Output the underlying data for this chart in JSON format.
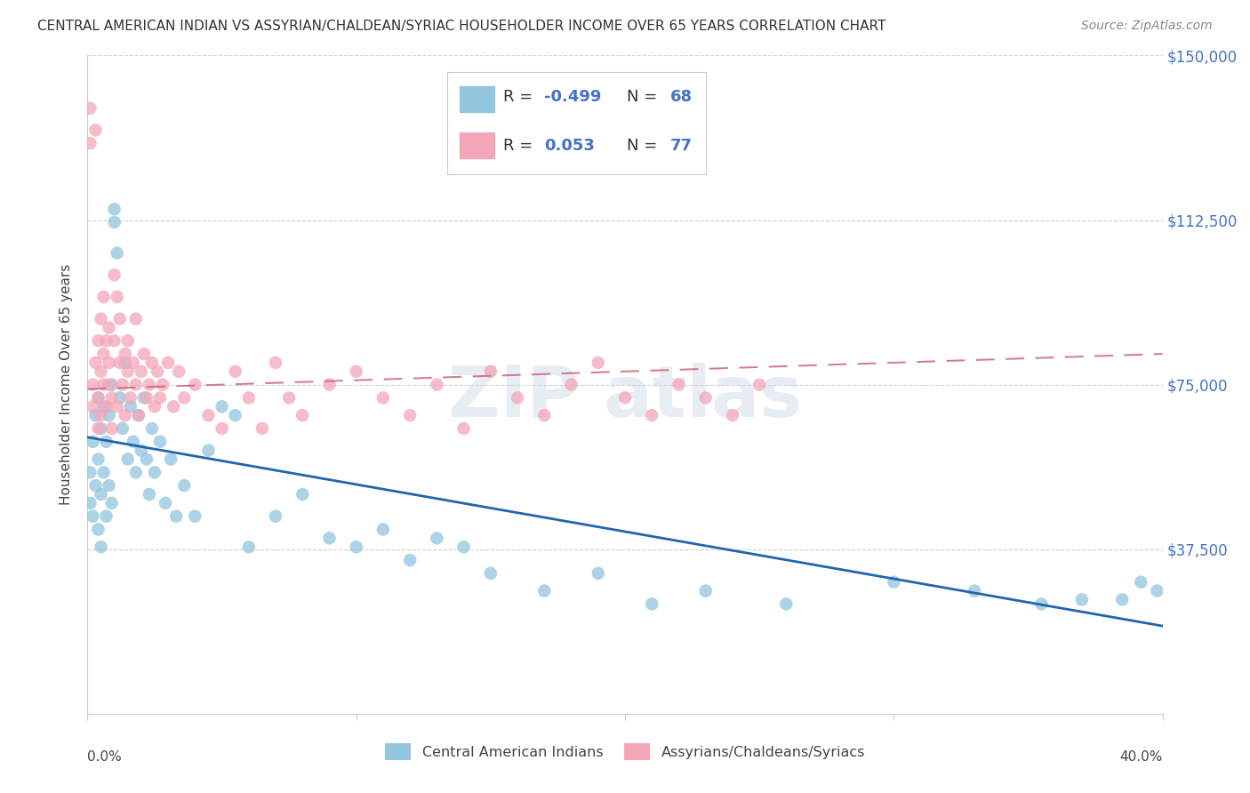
{
  "title": "CENTRAL AMERICAN INDIAN VS ASSYRIAN/CHALDEAN/SYRIAC HOUSEHOLDER INCOME OVER 65 YEARS CORRELATION CHART",
  "source": "Source: ZipAtlas.com",
  "ylabel": "Householder Income Over 65 years",
  "xlim": [
    0.0,
    0.4
  ],
  "ylim": [
    0,
    150000
  ],
  "yticks": [
    0,
    37500,
    75000,
    112500,
    150000
  ],
  "ytick_labels": [
    "",
    "$37,500",
    "$75,000",
    "$112,500",
    "$150,000"
  ],
  "blue_color": "#92c5de",
  "pink_color": "#f4a6b8",
  "blue_line_color": "#2166ac",
  "pink_line_color": "#c9607a",
  "legend_label1": "Central American Indians",
  "legend_label2": "Assyrians/Chaldeans/Syriacs",
  "blue_r": "-0.499",
  "blue_n": "68",
  "pink_r": "0.053",
  "pink_n": "77",
  "blue_line_x0": 0.0,
  "blue_line_y0": 63000,
  "blue_line_x1": 0.4,
  "blue_line_y1": 20000,
  "pink_line_x0": 0.0,
  "pink_line_y0": 74000,
  "pink_line_x1": 0.4,
  "pink_line_y1": 82000
}
